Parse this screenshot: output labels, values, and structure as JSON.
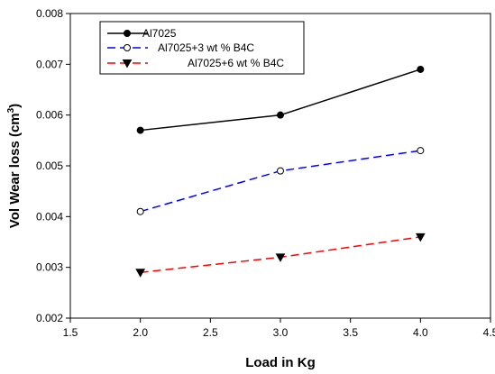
{
  "chart_data": {
    "type": "line",
    "x": [
      2.0,
      3.0,
      4.0
    ],
    "xlabel": "Load in Kg",
    "ylabel_main": "Vol Wear loss (cm",
    "ylabel_sup": "3",
    "ylabel_close": ")",
    "xlim": [
      1.5,
      4.5
    ],
    "ylim": [
      0.002,
      0.008
    ],
    "xticks": [
      "1.5",
      "2.0",
      "2.5",
      "3.0",
      "3.5",
      "4.0",
      "4.5"
    ],
    "yticks": [
      "0.002",
      "0.003",
      "0.004",
      "0.005",
      "0.006",
      "0.007",
      "0.008"
    ],
    "grid": false,
    "legend_position": "top-left",
    "series": [
      {
        "name": "Al7025",
        "values": [
          0.0057,
          0.006,
          0.0069
        ],
        "color": "#000000",
        "dash": "solid",
        "marker": "filled-circle"
      },
      {
        "name": "Al7025+3 wt % B4C",
        "values": [
          0.0041,
          0.0049,
          0.0053
        ],
        "color": "#0000ff",
        "dash": "dashed",
        "marker": "open-circle"
      },
      {
        "name": "Al7025+6 wt % B4C",
        "values": [
          0.0029,
          0.0032,
          0.0036
        ],
        "color": "#ff0000",
        "dash": "dashed",
        "marker": "filled-triangle-down"
      }
    ]
  }
}
